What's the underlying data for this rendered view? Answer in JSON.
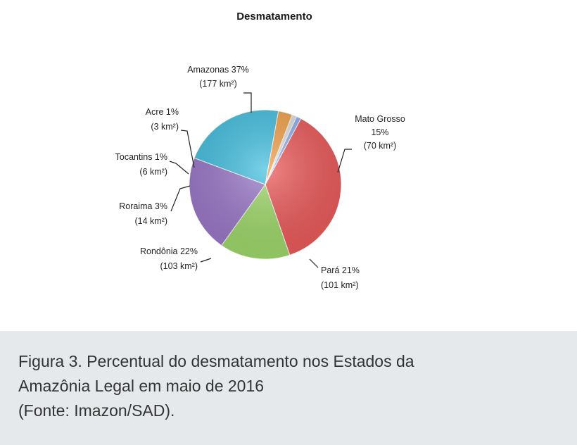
{
  "chart_data": {
    "type": "pie",
    "title": "Desmatamento",
    "slices": [
      {
        "name": "Amazonas",
        "percent": 37,
        "area_km2": 177,
        "label_lines": [
          "Amazonas 37%",
          "(177 km²)"
        ],
        "color": "#ec5a5a"
      },
      {
        "name": "Mato Grosso",
        "percent": 15,
        "area_km2": 70,
        "label_lines": [
          "Mato Grosso",
          "15%",
          "(70 km²)"
        ],
        "color": "#9fd86a"
      },
      {
        "name": "Pará",
        "percent": 21,
        "area_km2": 101,
        "label_lines": [
          "Pará 21%",
          "(101 km²)"
        ],
        "color": "#9b78c9"
      },
      {
        "name": "Rondônia",
        "percent": 22,
        "area_km2": 103,
        "label_lines": [
          "Rondônia 22%",
          "(103 km²)"
        ],
        "color": "#45c0e0"
      },
      {
        "name": "Roraima",
        "percent": 3,
        "area_km2": 14,
        "label_lines": [
          "Roraima 3%",
          "(14 km²)"
        ],
        "color": "#f2a14a"
      },
      {
        "name": "Tocantins",
        "percent": 1,
        "area_km2": 6,
        "label_lines": [
          "Tocantins 1%",
          "(6 km²)"
        ],
        "color": "#e0e0e0"
      },
      {
        "name": "Acre",
        "percent": 1,
        "area_km2": 3,
        "label_lines": [
          "Acre 1%",
          "(3 km²)"
        ],
        "color": "#8fb0f0"
      }
    ]
  },
  "caption": {
    "line1": "Figura 3. Percentual do desmatamento nos Estados da",
    "line2": "Amazônia Legal em maio de 2016",
    "line3": "(Fonte: Imazon/SAD)."
  }
}
